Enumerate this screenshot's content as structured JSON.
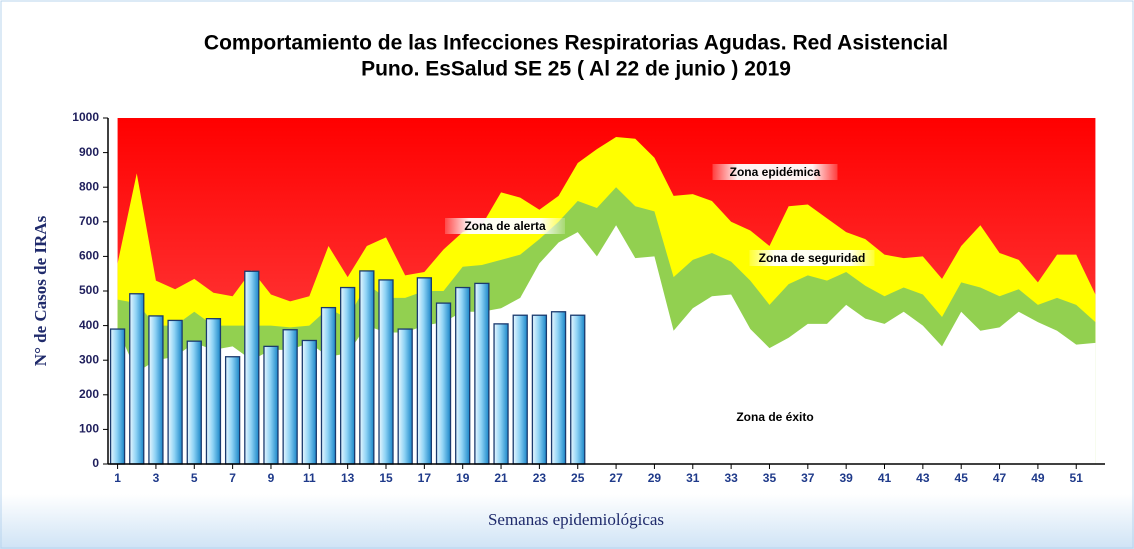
{
  "chart_data": {
    "type": "combo",
    "title": [
      "Comportamiento de las Infecciones Respiratorias Agudas. Red Asistencial",
      "Puno.  EsSalud SE 25 ( Al 22 de junio ) 2019"
    ],
    "y_label": "N° de Casos de IRAs",
    "x_label": "Semanas epidemiológicas",
    "annotations": [
      "Zona epidémica"
    ],
    "xlim": [
      0.5,
      52.5
    ],
    "xticks": [
      1,
      3,
      5,
      7,
      9,
      11,
      13,
      15,
      17,
      19,
      21,
      23,
      25,
      27,
      29,
      31,
      33,
      35,
      37,
      39,
      41,
      43,
      45,
      47,
      49,
      51
    ],
    "ylim": [
      0,
      1000
    ],
    "yticks": [
      0,
      100,
      200,
      300,
      400,
      500,
      600,
      700,
      800,
      900,
      1000
    ],
    "zone_x": [
      1,
      2,
      3,
      4,
      5,
      6,
      7,
      8,
      9,
      10,
      11,
      12,
      13,
      14,
      15,
      16,
      17,
      18,
      19,
      20,
      21,
      22,
      23,
      24,
      25,
      26,
      27,
      28,
      29,
      30,
      31,
      32,
      33,
      34,
      35,
      36,
      37,
      38,
      39,
      40,
      41,
      42,
      43,
      44,
      45,
      46,
      47,
      48,
      49,
      50,
      51,
      52
    ],
    "series": [
      {
        "name": "Zona de alerta",
        "type": "area",
        "color": "#ffff00",
        "values": [
          580,
          840,
          530,
          505,
          535,
          495,
          485,
          560,
          490,
          470,
          485,
          630,
          540,
          630,
          655,
          545,
          555,
          620,
          670,
          690,
          785,
          770,
          735,
          775,
          870,
          910,
          945,
          940,
          885,
          775,
          780,
          760,
          700,
          675,
          630,
          745,
          750,
          710,
          670,
          650,
          605,
          595,
          600,
          535,
          630,
          690,
          610,
          590,
          525,
          605,
          605,
          490
        ]
      },
      {
        "name": "Zona de seguridad",
        "type": "area",
        "color": "#92d050",
        "values": [
          475,
          465,
          400,
          400,
          440,
          400,
          400,
          400,
          400,
          395,
          400,
          450,
          420,
          520,
          480,
          480,
          500,
          500,
          570,
          575,
          590,
          605,
          650,
          700,
          760,
          740,
          800,
          745,
          730,
          540,
          590,
          610,
          585,
          530,
          460,
          520,
          545,
          530,
          555,
          515,
          485,
          510,
          490,
          425,
          525,
          510,
          485,
          505,
          460,
          480,
          460,
          410
        ]
      },
      {
        "name": "Zona de éxito",
        "type": "area",
        "color": "#ffffff",
        "values": [
          390,
          265,
          300,
          310,
          350,
          330,
          340,
          300,
          330,
          330,
          350,
          310,
          320,
          400,
          380,
          380,
          400,
          410,
          440,
          440,
          450,
          480,
          580,
          640,
          670,
          600,
          690,
          595,
          600,
          385,
          450,
          485,
          490,
          390,
          335,
          365,
          405,
          405,
          460,
          420,
          405,
          440,
          400,
          340,
          440,
          385,
          395,
          440,
          410,
          385,
          345,
          350
        ]
      },
      {
        "type": "bar",
        "color": "#29a3e0",
        "x": [
          1,
          2,
          3,
          4,
          5,
          6,
          7,
          8,
          9,
          10,
          11,
          12,
          13,
          14,
          15,
          16,
          17,
          18,
          19,
          20,
          21,
          22,
          23,
          24,
          25
        ],
        "values": [
          390,
          492,
          428,
          415,
          355,
          420,
          310,
          557,
          340,
          388,
          357,
          452,
          510,
          558,
          532,
          390,
          538,
          465,
          510,
          522,
          405,
          430,
          430,
          440,
          430
        ]
      }
    ]
  }
}
